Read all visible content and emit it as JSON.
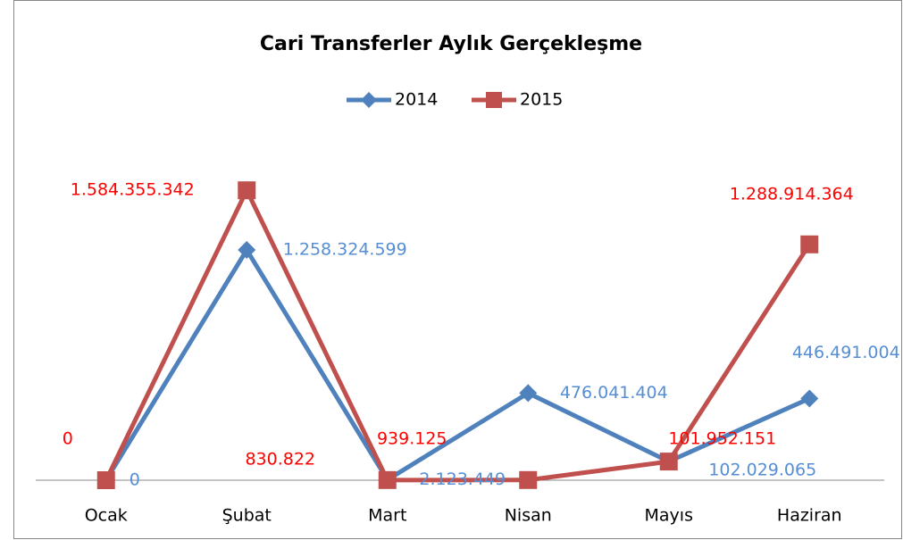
{
  "chart_data": {
    "type": "line",
    "title": "Cari Transferler Aylık Gerçekleşme",
    "categories": [
      "Ocak",
      "Şubat",
      "Mart",
      "Nisan",
      "Mayıs",
      "Haziran"
    ],
    "series": [
      {
        "name": "2014",
        "color": "#4f81bd",
        "marker": "diamond",
        "values": [
          0,
          1258324599,
          2123449,
          476041404,
          102029065,
          446491004
        ],
        "value_labels": [
          "0",
          "1.258.324.599",
          "2.123.449",
          "476.041.404",
          "102.029.065",
          "446.491.004"
        ]
      },
      {
        "name": "2015",
        "color": "#c0504d",
        "marker": "square",
        "values": [
          0,
          1584355342,
          830822,
          939125,
          101952151,
          1288914364
        ],
        "value_labels": [
          "0",
          "1.584.355.342",
          "830.822",
          "939.125",
          "101.952.151",
          "1.288.914.364"
        ]
      }
    ],
    "ylim": [
      0,
      1800000000
    ],
    "legend": "top"
  }
}
